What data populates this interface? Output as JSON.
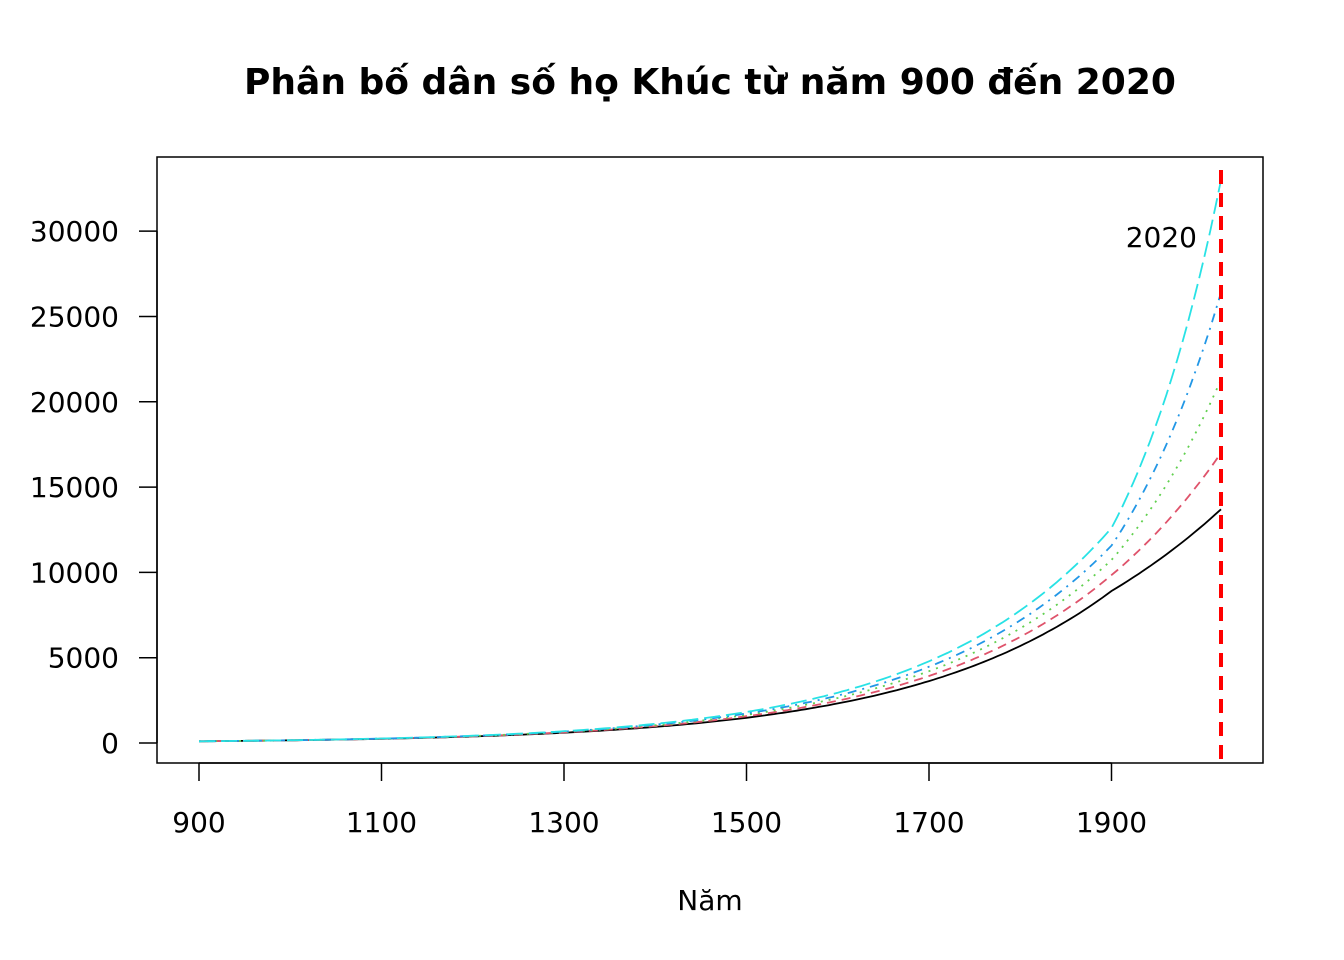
{
  "chart_data": {
    "type": "line",
    "title": "Phân bố dân số họ Khúc từ năm 900 đến 2020",
    "xlabel": "Năm",
    "ylabel": "",
    "xlim": [
      900,
      2020
    ],
    "ylim": [
      0,
      33000
    ],
    "x_ticks": [
      900,
      1100,
      1300,
      1500,
      1700,
      1900
    ],
    "y_ticks": [
      0,
      5000,
      10000,
      15000,
      20000,
      25000,
      30000
    ],
    "grid": false,
    "legend": "none",
    "x": [
      900,
      1000,
      1100,
      1200,
      1300,
      1400,
      1500,
      1600,
      1700,
      1800,
      1900,
      2020
    ],
    "series": [
      {
        "color": "#000000",
        "dash": "solid",
        "values": [
          100,
          157,
          246,
          385,
          603,
          945,
          1480,
          2320,
          3630,
          5690,
          8910,
          13700
        ]
      },
      {
        "color": "#DF536B",
        "dash": "dashed",
        "values": [
          100,
          158,
          250,
          395,
          625,
          990,
          1570,
          2480,
          3930,
          6220,
          9840,
          17000
        ]
      },
      {
        "color": "#61D04F",
        "dash": "dotted",
        "values": [
          100,
          160,
          254,
          406,
          648,
          1035,
          1650,
          2640,
          4210,
          6720,
          10730,
          21300
        ]
      },
      {
        "color": "#2297E6",
        "dash": "dotdash",
        "values": [
          100,
          161,
          259,
          416,
          669,
          1076,
          1730,
          2780,
          4470,
          7190,
          11570,
          26400
        ]
      },
      {
        "color": "#28E2E5",
        "dash": "longdash",
        "values": [
          100,
          162,
          263,
          427,
          692,
          1123,
          1820,
          2950,
          4790,
          7770,
          12600,
          33000
        ]
      }
    ],
    "reference_line": {
      "x": 2020,
      "color": "#FF0000",
      "dash": "dashed",
      "label": "2020"
    }
  }
}
